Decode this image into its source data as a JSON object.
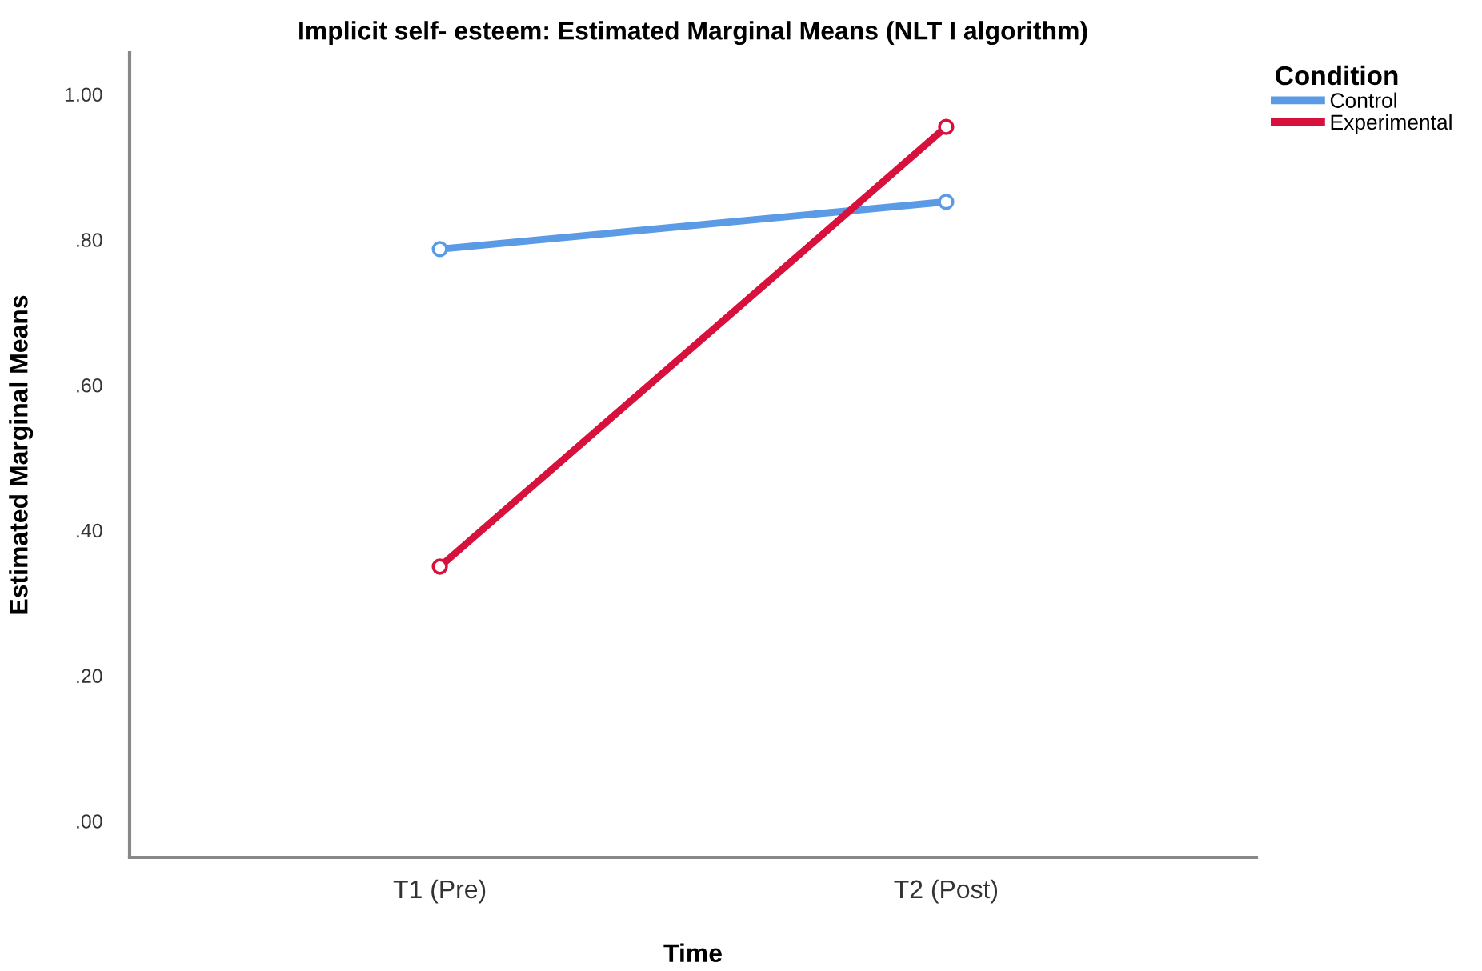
{
  "chart_data": {
    "type": "line",
    "title": "Implicit self- esteem: Estimated Marginal Means (NLT I algorithm)",
    "xlabel": "Time",
    "ylabel": "Estimated Marginal Means",
    "legend_title": "Condition",
    "categories": [
      "T1 (Pre)",
      "T2 (Post)"
    ],
    "series": [
      {
        "name": "Control",
        "color": "#5b9be6",
        "values": [
          0.787,
          0.852
        ]
      },
      {
        "name": "Experimental",
        "color": "#d8113c",
        "values": [
          0.35,
          0.955
        ]
      }
    ],
    "ylim": [
      -0.05,
      1.057
    ],
    "yticks": [
      {
        "value": 0,
        "label": ".00"
      },
      {
        "value": 0.2,
        "label": ".20"
      },
      {
        "value": 0.4,
        "label": ".40"
      },
      {
        "value": 0.6,
        "label": ".60"
      },
      {
        "value": 0.8,
        "label": ".80"
      },
      {
        "value": 1.0,
        "label": "1.00"
      }
    ],
    "marker": "circle",
    "line_style": "solid",
    "grid": false,
    "legend": "top right"
  }
}
